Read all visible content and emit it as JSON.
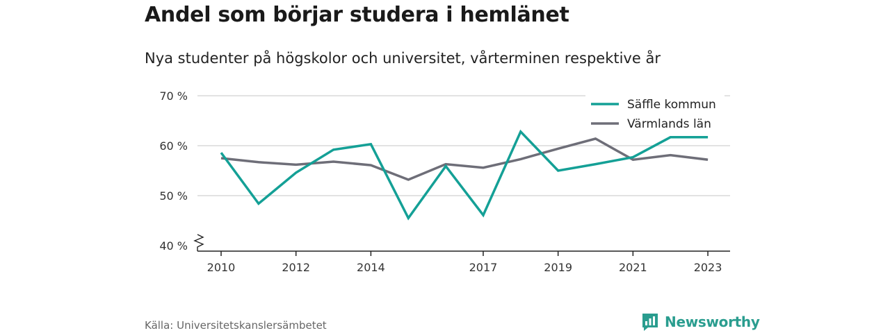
{
  "header": {
    "title": "Andel som börjar studera i hemlänet",
    "subtitle": "Nya studenter på högskolor och universitet, vårterminen respektive år"
  },
  "footer": {
    "source": "Källa: Universitetskanslersämbetet",
    "brand": "Newsworthy"
  },
  "colors": {
    "saffle": "#14a096",
    "varmland": "#6e6e78",
    "grid": "#d9d9d9",
    "brand": "#2a9d8f"
  },
  "chart_data": {
    "type": "line",
    "title": "Andel som börjar studera i hemlänet",
    "subtitle": "Nya studenter på högskolor och universitet, vårterminen respektive år",
    "xlabel": "",
    "ylabel": "",
    "x": [
      2010,
      2011,
      2012,
      2013,
      2014,
      2015,
      2016,
      2017,
      2018,
      2019,
      2020,
      2021,
      2022,
      2023
    ],
    "x_tick_labels": [
      "2010",
      "2012",
      "2014",
      "2017",
      "2019",
      "2021",
      "2023"
    ],
    "y_ticks": [
      40,
      50,
      60,
      70
    ],
    "y_tick_labels": [
      "40 %",
      "50 %",
      "60 %",
      "70 %"
    ],
    "ylim": [
      40,
      70
    ],
    "y_axis_break": true,
    "grid": true,
    "legend_position": "top-right",
    "series": [
      {
        "name": "Säffle kommun",
        "color": "#14a096",
        "values": [
          58.6,
          48.4,
          54.6,
          59.2,
          60.3,
          45.5,
          55.9,
          46.1,
          62.8,
          55.0,
          56.3,
          57.7,
          61.7,
          61.7
        ]
      },
      {
        "name": "Värmlands län",
        "color": "#6e6e78",
        "values": [
          57.5,
          56.7,
          56.2,
          56.8,
          56.1,
          53.2,
          56.3,
          55.6,
          57.3,
          59.4,
          61.4,
          57.2,
          58.1,
          57.2
        ]
      }
    ]
  }
}
